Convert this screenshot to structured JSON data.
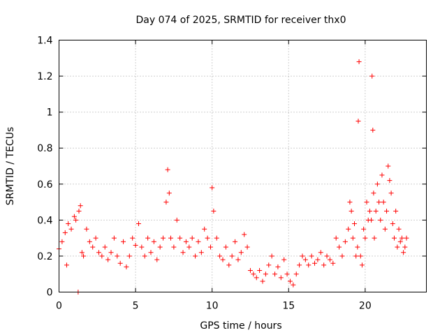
{
  "chart_data": {
    "type": "scatter",
    "title": "Day 074 of 2025, SRMTID for receiver thx0",
    "xlabel": "GPS time / hours",
    "ylabel": "SRMTID / TECUs",
    "xlim": [
      0,
      24
    ],
    "ylim": [
      0,
      1.4
    ],
    "xticks": [
      0,
      5,
      10,
      15,
      20
    ],
    "xtick_labels": [
      "0",
      "5",
      "10",
      "15",
      "20"
    ],
    "yticks": [
      0,
      0.2,
      0.4,
      0.6,
      0.8,
      1.0,
      1.2,
      1.4
    ],
    "ytick_labels": [
      "0",
      "0.2",
      "0.4",
      "0.6",
      "0.8",
      "1",
      "1.2",
      "1.4"
    ],
    "grid": true,
    "marker": "plus",
    "color": "#ff0000",
    "series": [
      {
        "name": "SRMTID",
        "x": [
          0.0,
          0.2,
          0.4,
          0.5,
          0.6,
          0.8,
          1.0,
          1.1,
          1.25,
          1.3,
          1.4,
          1.5,
          1.6,
          1.8,
          2.0,
          2.2,
          2.4,
          2.6,
          2.8,
          3.0,
          3.2,
          3.4,
          3.6,
          3.8,
          4.0,
          4.2,
          4.4,
          4.6,
          4.8,
          5.0,
          5.2,
          5.4,
          5.6,
          5.8,
          6.0,
          6.2,
          6.4,
          6.6,
          6.8,
          7.0,
          7.1,
          7.2,
          7.3,
          7.5,
          7.7,
          7.9,
          8.1,
          8.3,
          8.5,
          8.7,
          8.9,
          9.1,
          9.3,
          9.5,
          9.7,
          9.9,
          10.0,
          10.1,
          10.3,
          10.5,
          10.7,
          10.9,
          11.1,
          11.3,
          11.5,
          11.7,
          11.9,
          12.1,
          12.3,
          12.5,
          12.7,
          12.9,
          13.1,
          13.3,
          13.5,
          13.7,
          13.9,
          14.1,
          14.3,
          14.5,
          14.7,
          14.9,
          15.1,
          15.3,
          15.5,
          15.7,
          15.9,
          16.1,
          16.3,
          16.5,
          16.7,
          16.9,
          17.1,
          17.3,
          17.5,
          17.7,
          17.9,
          18.1,
          18.3,
          18.5,
          18.7,
          18.9,
          19.0,
          19.1,
          19.2,
          19.3,
          19.4,
          19.5,
          19.55,
          19.6,
          19.7,
          19.8,
          19.9,
          20.0,
          20.1,
          20.2,
          20.3,
          20.4,
          20.45,
          20.5,
          20.55,
          20.6,
          20.7,
          20.8,
          20.9,
          21.0,
          21.1,
          21.2,
          21.3,
          21.4,
          21.5,
          21.6,
          21.7,
          21.8,
          21.9,
          22.0,
          22.1,
          22.2,
          22.3,
          22.4,
          22.5,
          22.6,
          22.7
        ],
        "y": [
          0.24,
          0.28,
          0.33,
          0.15,
          0.38,
          0.35,
          0.42,
          0.4,
          0.0,
          0.45,
          0.48,
          0.22,
          0.2,
          0.35,
          0.28,
          0.25,
          0.3,
          0.22,
          0.2,
          0.25,
          0.18,
          0.22,
          0.3,
          0.2,
          0.16,
          0.28,
          0.14,
          0.2,
          0.3,
          0.26,
          0.38,
          0.25,
          0.2,
          0.3,
          0.22,
          0.28,
          0.18,
          0.25,
          0.3,
          0.5,
          0.68,
          0.55,
          0.3,
          0.25,
          0.4,
          0.3,
          0.22,
          0.28,
          0.25,
          0.3,
          0.2,
          0.28,
          0.22,
          0.35,
          0.3,
          0.25,
          0.58,
          0.45,
          0.3,
          0.2,
          0.18,
          0.25,
          0.15,
          0.2,
          0.28,
          0.18,
          0.22,
          0.32,
          0.25,
          0.12,
          0.1,
          0.08,
          0.12,
          0.06,
          0.1,
          0.15,
          0.2,
          0.1,
          0.14,
          0.08,
          0.18,
          0.1,
          0.06,
          0.04,
          0.1,
          0.15,
          0.2,
          0.18,
          0.15,
          0.2,
          0.16,
          0.18,
          0.22,
          0.15,
          0.2,
          0.18,
          0.16,
          0.3,
          0.25,
          0.2,
          0.28,
          0.35,
          0.5,
          0.45,
          0.3,
          0.38,
          0.2,
          0.25,
          0.95,
          1.28,
          0.2,
          0.15,
          0.35,
          0.3,
          0.5,
          0.4,
          0.45,
          0.4,
          1.2,
          0.9,
          0.55,
          0.3,
          0.45,
          0.6,
          0.5,
          0.4,
          0.65,
          0.5,
          0.35,
          0.45,
          0.7,
          0.62,
          0.55,
          0.38,
          0.3,
          0.45,
          0.25,
          0.35,
          0.28,
          0.3,
          0.22,
          0.25,
          0.3
        ]
      }
    ]
  }
}
